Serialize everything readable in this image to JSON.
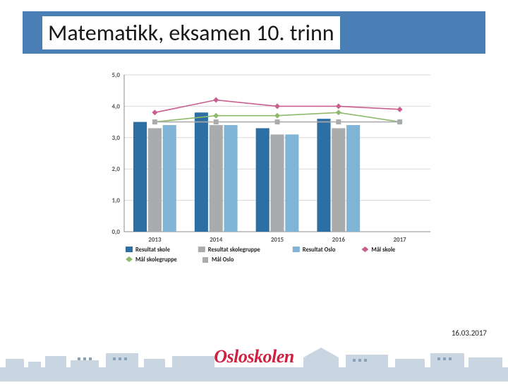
{
  "title": "Matematikk, eksamen 10. trinn",
  "date": "16.03.2017",
  "logo_text": "Osloskolen",
  "chart": {
    "type": "bar+line",
    "background_color": "#ffffff",
    "plot_background": "#ffffff",
    "grid_color": "#d9d9d9",
    "axis_color": "#888888",
    "label_fontsize": 9,
    "ylim": [
      0,
      5
    ],
    "ytick_step": 1,
    "yticks": [
      "0,0",
      "1,0",
      "2,0",
      "3,0",
      "4,0",
      "5,0"
    ],
    "categories": [
      "2013",
      "2014",
      "2015",
      "2016",
      "2017"
    ],
    "bar_width": 0.22,
    "bar_gap": 0.02,
    "bars": [
      {
        "name": "Resultat skole",
        "color": "#2d6ea3",
        "values": [
          3.5,
          3.8,
          3.3,
          3.6,
          null
        ]
      },
      {
        "name": "Resultat skolegruppe",
        "color": "#a9abad",
        "values": [
          3.3,
          3.4,
          3.1,
          3.3,
          null
        ]
      },
      {
        "name": "Resultat Oslo",
        "color": "#7fb4d6",
        "values": [
          3.4,
          3.4,
          3.1,
          3.4,
          null
        ]
      }
    ],
    "lines": [
      {
        "name": "Mål skole",
        "color": "#c85f8f",
        "marker": "diamond",
        "values": [
          3.8,
          4.2,
          4.0,
          4.0,
          3.9
        ]
      },
      {
        "name": "Mål skolegruppe",
        "color": "#8fb96b",
        "marker": "diamond",
        "values": [
          3.5,
          3.7,
          3.7,
          3.8,
          3.5
        ]
      },
      {
        "name": "Mål Oslo",
        "color": "#a9abad",
        "marker": "square",
        "values": [
          3.5,
          3.5,
          3.5,
          3.5,
          3.5
        ]
      }
    ],
    "legend_layout": [
      [
        "Resultat skole",
        "Resultat skolegruppe",
        "Resultat Oslo",
        "Mål skole"
      ],
      [
        "Mål skolegruppe",
        "Mål Oslo"
      ]
    ]
  },
  "colors": {
    "title_banner": "#4a7fb5",
    "logo": "#d0203f",
    "skyline_light": "#c9d6e2",
    "skyline_dark": "#8aa2b8"
  }
}
